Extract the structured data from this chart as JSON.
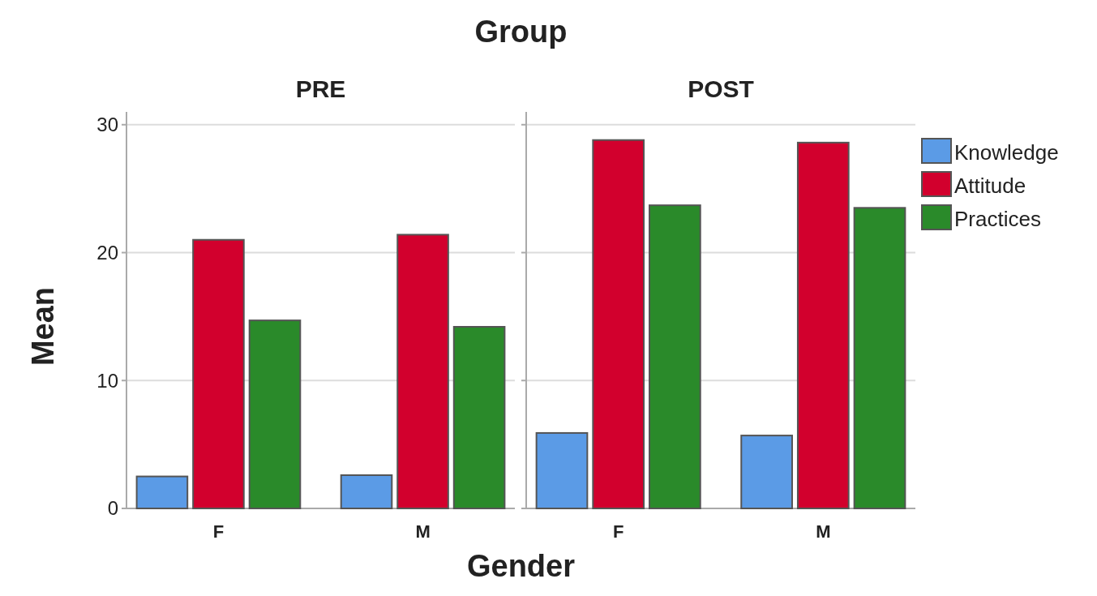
{
  "chart_data": [
    {
      "type": "bar",
      "title": "PRE",
      "ylabel": "Mean",
      "xlabel": "Gender",
      "annotations": [
        "Group"
      ],
      "categories": [
        "F",
        "M"
      ],
      "series": [
        {
          "color": "#5b9be6",
          "values": [
            2.5,
            2.6
          ]
        },
        {
          "color": "#d2002d",
          "values": [
            21.0,
            21.4
          ]
        },
        {
          "color": "#2a8a2a",
          "values": [
            14.7,
            14.2
          ]
        }
      ],
      "ylim": [
        0,
        31
      ],
      "yticks": [
        0,
        10,
        20,
        30
      ],
      "grid": "y",
      "legend": false
    },
    {
      "type": "bar",
      "title": "POST",
      "categories": [
        "F",
        "M"
      ],
      "series": [
        {
          "name": "Knowledge",
          "color": "#5b9be6",
          "values": [
            5.9,
            5.7
          ]
        },
        {
          "name": "Attitude",
          "color": "#d2002d",
          "values": [
            28.8,
            28.6
          ]
        },
        {
          "name": "Practices",
          "color": "#2a8a2a",
          "values": [
            23.7,
            23.5
          ]
        }
      ],
      "ylim": [
        0,
        31
      ],
      "yticks": [
        0,
        10,
        20,
        30
      ],
      "grid": "y",
      "legend": "right",
      "tick_labels": "x"
    }
  ]
}
